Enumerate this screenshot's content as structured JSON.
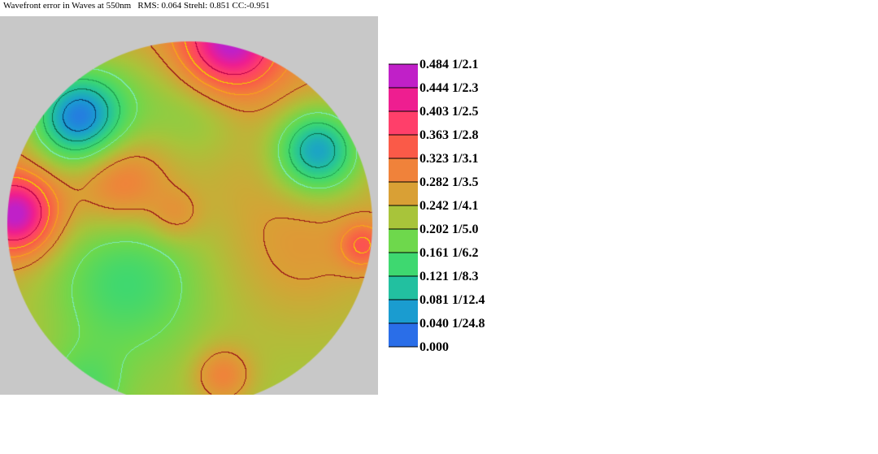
{
  "header": {
    "title": "Wavefront error in Waves at 550nm",
    "stats": "RMS: 0.064 Strehl: 0.851 CC:-0.951"
  },
  "chart_data": {
    "type": "heatmap",
    "title": "Wavefront error in Waves at 550nm",
    "statistics": {
      "rms": 0.064,
      "strehl": 0.851,
      "cc": -0.951
    },
    "units": "waves",
    "wavelength_nm": 550,
    "colorscale": {
      "min": 0.0,
      "max": 0.484,
      "levels": [
        {
          "value": "0.484",
          "fraction": "1/2.1",
          "color": "#c020c8"
        },
        {
          "value": "0.444",
          "fraction": "1/2.3",
          "color": "#ee1e90"
        },
        {
          "value": "0.403",
          "fraction": "1/2.5",
          "color": "#ff3f6a"
        },
        {
          "value": "0.363",
          "fraction": "1/2.8",
          "color": "#fa5a48"
        },
        {
          "value": "0.323",
          "fraction": "1/3.1",
          "color": "#f0823a"
        },
        {
          "value": "0.282",
          "fraction": "1/3.5",
          "color": "#d9a035"
        },
        {
          "value": "0.242",
          "fraction": "1/4.1",
          "color": "#a8c43a"
        },
        {
          "value": "0.202",
          "fraction": "1/5.0",
          "color": "#6ed84c"
        },
        {
          "value": "0.161",
          "fraction": "1/6.2",
          "color": "#3ed870"
        },
        {
          "value": "0.121",
          "fraction": "1/8.3",
          "color": "#22c0a0"
        },
        {
          "value": "0.081",
          "fraction": "1/12.4",
          "color": "#1a9cd0"
        },
        {
          "value": "0.040",
          "fraction": "1/24.8",
          "color": "#2a6ee8"
        },
        {
          "value": "0.000",
          "fraction": "",
          "color": "#3c46f8"
        }
      ]
    },
    "contour_colors": {
      "0.040": "#1010a0",
      "0.081": "#063c6a",
      "0.121": "#0a6a4a",
      "0.161": "#20a050",
      "0.202": "#7ce8b8",
      "0.282": "#9a1818",
      "0.323": "#f5a818",
      "0.363": "#f0d000",
      "0.403": "#b8004a"
    },
    "features": [
      {
        "name": "lower-center-low",
        "x": -0.35,
        "y": -0.3,
        "value": 0.17
      },
      {
        "name": "upper-left-low",
        "x": -0.62,
        "y": 0.58,
        "value": 0.07
      },
      {
        "name": "upper-right-low",
        "x": 0.7,
        "y": 0.4,
        "value": 0.09
      },
      {
        "name": "left-edge-high",
        "x": -0.95,
        "y": 0.05,
        "value": 0.48
      },
      {
        "name": "top-edge-high",
        "x": 0.22,
        "y": 0.98,
        "value": 0.46
      },
      {
        "name": "upper-left-bump",
        "x": -0.37,
        "y": 0.22,
        "value": 0.34
      },
      {
        "name": "bottom-bump",
        "x": 0.18,
        "y": -0.83,
        "value": 0.33
      }
    ]
  }
}
